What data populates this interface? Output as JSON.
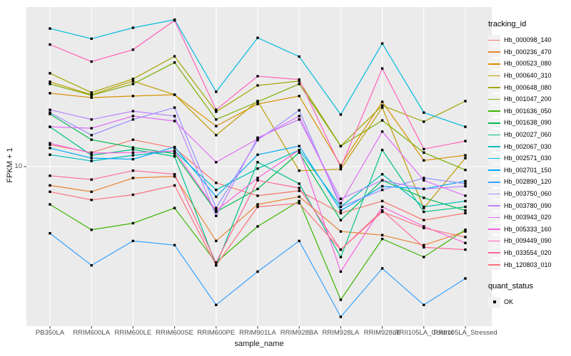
{
  "figure": {
    "panel_bg": "#EBEBEB",
    "grid_color": "#FFFFFF",
    "tick_color": "#333333",
    "tick_text_color": "#4D4D4D",
    "point_color": "#000000"
  },
  "axes": {
    "x_label": "sample_name",
    "y_label": "FPKM + 1",
    "y_scale": "log10",
    "y_tick_labels": [
      "10"
    ],
    "y_tick_values": [
      10
    ]
  },
  "legend": {
    "color_title": "tracking_id",
    "shape_title": "quant_status",
    "shape_entries": [
      {
        "label": "OK",
        "shape": "filled-square",
        "color": "#000000"
      }
    ]
  },
  "chart_data": {
    "type": "line",
    "title": "",
    "xlabel": "sample_name",
    "ylabel": "FPKM + 1",
    "y_scale": "log10",
    "ylim": [
      0.8,
      120
    ],
    "grid": "vertical-plus-y10",
    "legend_position": "right",
    "point_shape": "filled-square",
    "categories": [
      "PB350LA",
      "RRIM600LA",
      "RRIM600LE",
      "RRIM600SE",
      "RRIM600PE",
      "RRIM901LA",
      "RRIM928BA",
      "RRIM928LA",
      "RRIM928LE",
      "RRII105LA_Control",
      "RRII105LA_Stressed"
    ],
    "series": [
      {
        "name": "Hb_000098_140",
        "color": "#F8766D",
        "values": [
          14.0,
          12.4,
          15.1,
          13.3,
          7.8,
          6.4,
          6.9,
          4.9,
          5.9,
          4.4,
          4.9
        ]
      },
      {
        "name": "Hb_000236_470",
        "color": "#EA8331",
        "values": [
          7.5,
          6.8,
          8.4,
          8.6,
          3.2,
          5.6,
          6.3,
          3.7,
          3.5,
          3.0,
          3.7
        ]
      },
      {
        "name": "Hb_000523_080",
        "color": "#D89000",
        "values": [
          30.8,
          28.8,
          29.5,
          30.1,
          18.6,
          26.1,
          29.5,
          10.2,
          27.0,
          11.0,
          11.9
        ]
      },
      {
        "name": "Hb_000640_310",
        "color": "#C09B00",
        "values": [
          36.7,
          30.1,
          37.1,
          30.1,
          16.2,
          27.3,
          9.4,
          9.6,
          24.7,
          5.3,
          11.4
        ]
      },
      {
        "name": "Hb_000648_080",
        "color": "#A3A500",
        "values": [
          41.8,
          31.1,
          38.3,
          54.2,
          23.2,
          34.7,
          37.1,
          13.7,
          25.5,
          19.9,
          27.3
        ]
      },
      {
        "name": "Hb_001047_200",
        "color": "#7CAE00",
        "values": [
          35.5,
          29.8,
          35.5,
          49.3,
          20.6,
          27.0,
          35.5,
          13.7,
          20.3,
          12.4,
          9.5
        ]
      },
      {
        "name": "Hb_001636_050",
        "color": "#39B600",
        "values": [
          5.6,
          3.8,
          4.2,
          5.3,
          2.3,
          4.0,
          5.9,
          1.3,
          3.3,
          2.5,
          3.8
        ]
      },
      {
        "name": "Hb_001638_090",
        "color": "#00BB4E",
        "values": [
          22.4,
          15.1,
          13.4,
          12.2,
          5.0,
          7.1,
          12.4,
          4.4,
          8.1,
          6.2,
          5.1
        ]
      },
      {
        "name": "Hb_002027_060",
        "color": "#00C087",
        "values": [
          18.4,
          11.9,
          13.0,
          11.7,
          2.2,
          10.7,
          7.7,
          2.5,
          12.9,
          5.0,
          5.4
        ]
      },
      {
        "name": "Hb_002067_030",
        "color": "#00C0B8",
        "values": [
          12.0,
          10.9,
          11.9,
          12.7,
          7.0,
          9.7,
          12.9,
          5.4,
          8.9,
          5.4,
          5.9
        ]
      },
      {
        "name": "Hb_002571_030",
        "color": "#00BAE0",
        "values": [
          83,
          71,
          84,
          95,
          31.5,
          72,
          54,
          22.2,
          66,
          22.9,
          18.4
        ]
      },
      {
        "name": "Hb_002701_150",
        "color": "#00ACFC",
        "values": [
          13.3,
          11.4,
          11.2,
          13.5,
          6.3,
          12.0,
          13.7,
          5.1,
          7.4,
          7.1,
          8.0
        ]
      },
      {
        "name": "Hb_002890_120",
        "color": "#35A2FF",
        "values": [
          3.6,
          2.2,
          3.2,
          3.0,
          1.2,
          2.0,
          3.2,
          1.0,
          2.1,
          1.2,
          1.8
        ]
      },
      {
        "name": "Hb_003750_060",
        "color": "#9590FF",
        "values": [
          22.9,
          16.2,
          20.6,
          24.7,
          5.3,
          15.0,
          23.7,
          5.4,
          7.0,
          8.4,
          7.7
        ]
      },
      {
        "name": "Hb_003780_090",
        "color": "#BC81FF",
        "values": [
          23.9,
          20.6,
          23.4,
          21.7,
          4.7,
          15.6,
          20.6,
          6.1,
          8.1,
          7.1,
          7.4
        ]
      },
      {
        "name": "Hb_003943_020",
        "color": "#E26EF7",
        "values": [
          18.4,
          18.0,
          21.7,
          20.1,
          10.7,
          15.3,
          21.7,
          5.7,
          17.1,
          8.1,
          6.4
        ]
      },
      {
        "name": "Hb_005333_160",
        "color": "#F863DF",
        "values": [
          14.3,
          12.3,
          12.4,
          12.7,
          5.1,
          8.4,
          12.9,
          2.0,
          5.4,
          4.0,
          3.1
        ]
      },
      {
        "name": "Hb_009449_090",
        "color": "#FF62BC",
        "values": [
          65,
          50,
          60,
          94,
          23.9,
          40,
          38,
          9.9,
          45,
          13.1,
          14.8
        ]
      },
      {
        "name": "Hb_033554_020",
        "color": "#FF6A98",
        "values": [
          8.7,
          8.2,
          9.4,
          8.9,
          2.3,
          8.1,
          7.2,
          2.8,
          5.1,
          2.9,
          2.8
        ]
      },
      {
        "name": "Hb_120803_010",
        "color": "#FC717F",
        "values": [
          6.8,
          6.0,
          6.5,
          7.5,
          2.2,
          5.4,
          5.7,
          2.8,
          5.0,
          3.9,
          3.4
        ]
      }
    ]
  }
}
